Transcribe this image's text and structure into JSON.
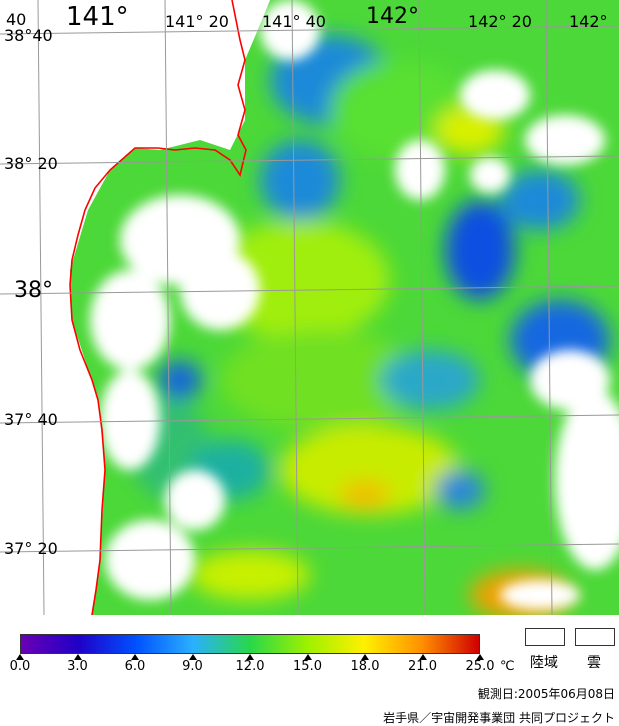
{
  "map": {
    "lat_labels": [
      "38°40",
      "38° 20",
      "38°",
      "37° 40",
      "37° 20"
    ],
    "lon_labels": [
      "141° 20",
      "141° 40",
      "142° 20",
      "142°"
    ],
    "lon_big": [
      "141°",
      "142°"
    ],
    "corner_label": "40",
    "colors": {
      "land": "#ffffff",
      "cloud": "#ffffff",
      "coastline": "#ff0000",
      "grid": "#999999"
    }
  },
  "legend": {
    "ticks": [
      "0.0",
      "3.0",
      "6.0",
      "9.0",
      "12.0",
      "15.0",
      "18.0",
      "21.0",
      "25.0"
    ],
    "unit": "℃",
    "land_label": "陸域",
    "cloud_label": "雲",
    "colormap": [
      "#6a00b4",
      "#2000c8",
      "#0050ff",
      "#2ab0ff",
      "#28d84a",
      "#9ef000",
      "#fff000",
      "#ff9000",
      "#d00000"
    ]
  },
  "footer": {
    "date": "観測日:2005年06月08日",
    "credit": "岩手県／宇宙開発事業団 共同プロジェクト"
  }
}
